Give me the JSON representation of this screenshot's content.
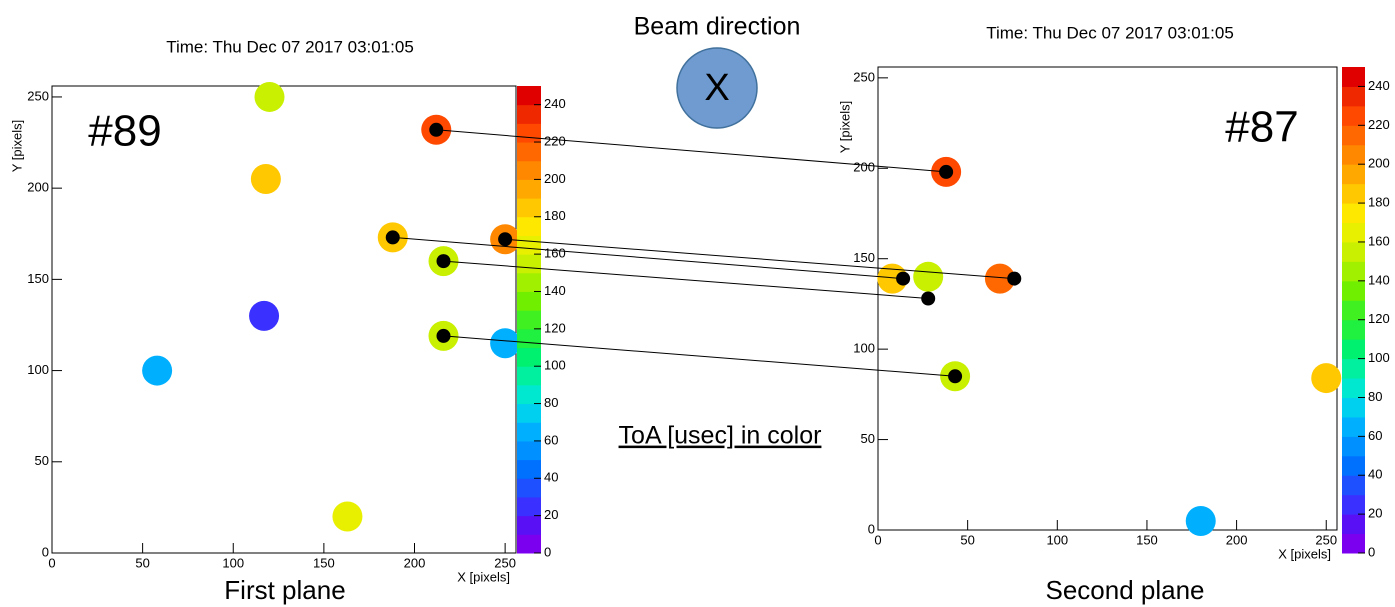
{
  "annotations": {
    "beam_direction": "Beam direction",
    "beam_symbol": "X",
    "color_note": "ToA [usec] in color"
  },
  "chart_data": [
    {
      "type": "heatmap",
      "title": "Time: Thu Dec 07 2017 03:01:05",
      "label": "#89",
      "caption": "First plane",
      "x_label": "X [pixels]",
      "y_label": "Y [pixels]",
      "xlim": [
        0,
        256
      ],
      "ylim": [
        0,
        256
      ],
      "xticks": [
        0,
        50,
        100,
        150,
        200,
        250
      ],
      "yticks": [
        0,
        50,
        100,
        150,
        200,
        250
      ],
      "colorbar": {
        "lim": [
          0,
          250
        ],
        "ticks": [
          0,
          20,
          40,
          60,
          80,
          100,
          120,
          140,
          160,
          180,
          200,
          220,
          240
        ],
        "palette": [
          "#7b00f0",
          "#5a10f5",
          "#3a30ff",
          "#1f50ff",
          "#0070ff",
          "#0090ff",
          "#00b0ff",
          "#00d0f0",
          "#00e8d0",
          "#00f0a0",
          "#00f070",
          "#20f040",
          "#40f020",
          "#70f000",
          "#a0f000",
          "#c8f000",
          "#e8f000",
          "#ffe800",
          "#ffc800",
          "#ffa800",
          "#ff8800",
          "#ff6800",
          "#ff4800",
          "#f02800",
          "#e00000"
        ]
      },
      "clusters": {
        "x": [
          120,
          118,
          212,
          188,
          216,
          250,
          117,
          58,
          216,
          250,
          163
        ],
        "y": [
          250,
          205,
          232,
          173,
          160,
          172,
          130,
          100,
          119,
          115,
          20
        ],
        "values": [
          150,
          180,
          225,
          185,
          150,
          205,
          20,
          60,
          150,
          60,
          160
        ]
      },
      "markers": {
        "x": [
          212,
          188,
          250,
          216,
          216
        ],
        "y": [
          232,
          173,
          172,
          160,
          119
        ]
      }
    },
    {
      "type": "heatmap",
      "title": "Time: Thu Dec 07 2017 03:01:05",
      "label": "#87",
      "caption": "Second plane",
      "x_label": "X [pixels]",
      "y_label": "Y [pixels]",
      "xlim": [
        0,
        256
      ],
      "ylim": [
        0,
        256
      ],
      "xticks": [
        0,
        50,
        100,
        150,
        200,
        250
      ],
      "yticks": [
        0,
        50,
        100,
        150,
        200,
        250
      ],
      "colorbar": {
        "lim": [
          0,
          250
        ],
        "ticks": [
          0,
          20,
          40,
          60,
          80,
          100,
          120,
          140,
          160,
          180,
          200,
          220,
          240
        ],
        "palette": [
          "#7b00f0",
          "#5a10f5",
          "#3a30ff",
          "#1f50ff",
          "#0070ff",
          "#0090ff",
          "#00b0ff",
          "#00d0f0",
          "#00e8d0",
          "#00f0a0",
          "#00f070",
          "#20f040",
          "#40f020",
          "#70f000",
          "#a0f000",
          "#c8f000",
          "#e8f000",
          "#ffe800",
          "#ffc800",
          "#ffa800",
          "#ff8800",
          "#ff6800",
          "#ff4800",
          "#f02800",
          "#e00000"
        ]
      },
      "clusters": {
        "x": [
          38,
          8,
          28,
          68,
          43,
          250,
          180
        ],
        "y": [
          198,
          139,
          140,
          139,
          85,
          84,
          5
        ],
        "values": [
          225,
          185,
          150,
          210,
          150,
          185,
          60
        ]
      },
      "markers": {
        "x": [
          38,
          14,
          76,
          28,
          43
        ],
        "y": [
          198,
          139,
          139,
          128,
          85
        ]
      }
    }
  ]
}
